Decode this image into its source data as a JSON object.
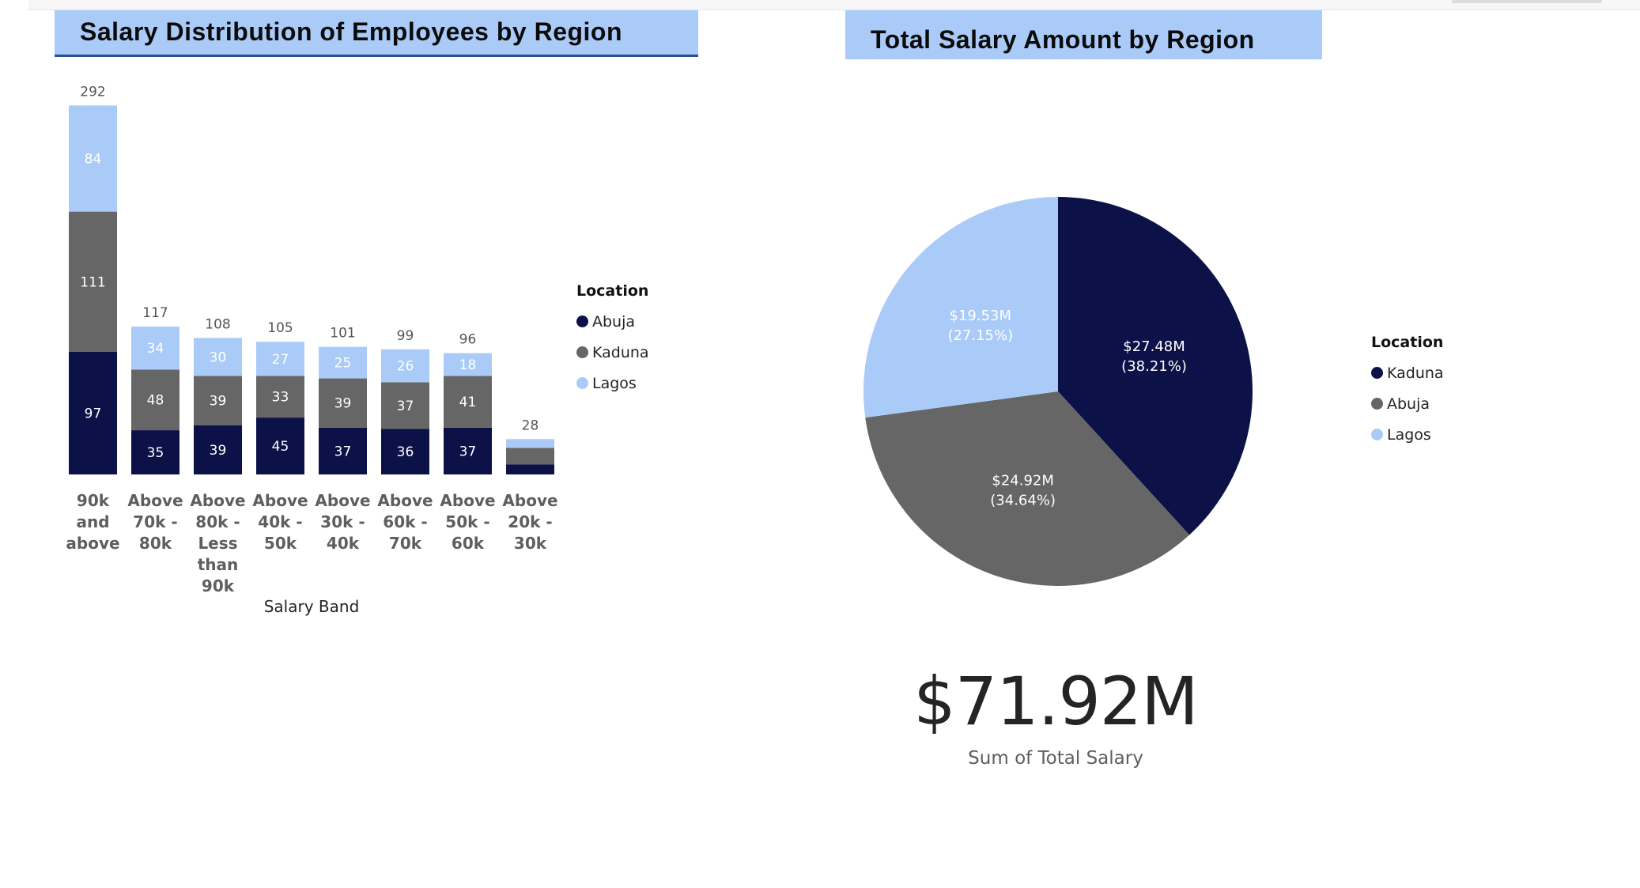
{
  "bar_panel": {
    "title": "Salary Distribution of Employees by Region"
  },
  "pie_panel": {
    "title": "Total Salary Amount by Region"
  },
  "bar_legend": {
    "title": "Location",
    "items": [
      {
        "label": "Abuja",
        "color": "#0c1247"
      },
      {
        "label": "Kaduna",
        "color": "#666666"
      },
      {
        "label": "Lagos",
        "color": "#aacbf8"
      }
    ]
  },
  "pie_legend": {
    "title": "Location",
    "items": [
      {
        "label": "Kaduna",
        "color": "#0c1247"
      },
      {
        "label": "Abuja",
        "color": "#666666"
      },
      {
        "label": "Lagos",
        "color": "#aacbf8"
      }
    ]
  },
  "kpi": {
    "value": "$71.92M",
    "label": "Sum of Total Salary"
  },
  "chart_data": [
    {
      "type": "bar",
      "stacked": true,
      "title": "Salary Distribution of Employees by Region",
      "xlabel": "Salary Band",
      "ylabel": "",
      "categories": [
        [
          "90k",
          "and",
          "above"
        ],
        [
          "Above",
          "70k -",
          "80k"
        ],
        [
          "Above",
          "80k -",
          "Less",
          "than",
          "90k"
        ],
        [
          "Above",
          "40k -",
          "50k"
        ],
        [
          "Above",
          "30k -",
          "40k"
        ],
        [
          "Above",
          "60k -",
          "70k"
        ],
        [
          "Above",
          "50k -",
          "60k"
        ],
        [
          "Above",
          "20k -",
          "30k"
        ]
      ],
      "series": [
        {
          "name": "Abuja",
          "color": "#0c1247",
          "values": [
            97,
            35,
            39,
            45,
            37,
            36,
            37,
            8
          ]
        },
        {
          "name": "Kaduna",
          "color": "#666666",
          "values": [
            111,
            48,
            39,
            33,
            39,
            37,
            41,
            13
          ]
        },
        {
          "name": "Lagos",
          "color": "#aacbf8",
          "values": [
            84,
            34,
            30,
            27,
            25,
            26,
            18,
            7
          ]
        }
      ],
      "totals": [
        292,
        117,
        108,
        105,
        101,
        99,
        96,
        28
      ],
      "show_segment_labels": [
        true,
        true,
        true,
        true,
        true,
        true,
        true,
        false
      ],
      "legend_position": "right",
      "grid": false
    },
    {
      "type": "pie",
      "title": "Total Salary Amount by Region",
      "slices": [
        {
          "label": "Kaduna",
          "value": 27.48,
          "display": "$27.48M",
          "percent": "(38.21%)",
          "color": "#0c1247"
        },
        {
          "label": "Abuja",
          "value": 24.92,
          "display": "$24.92M",
          "percent": "(34.64%)",
          "color": "#666666"
        },
        {
          "label": "Lagos",
          "value": 19.53,
          "display": "$19.53M",
          "percent": "(27.15%)",
          "color": "#aacbf8"
        }
      ],
      "legend_position": "right"
    }
  ]
}
